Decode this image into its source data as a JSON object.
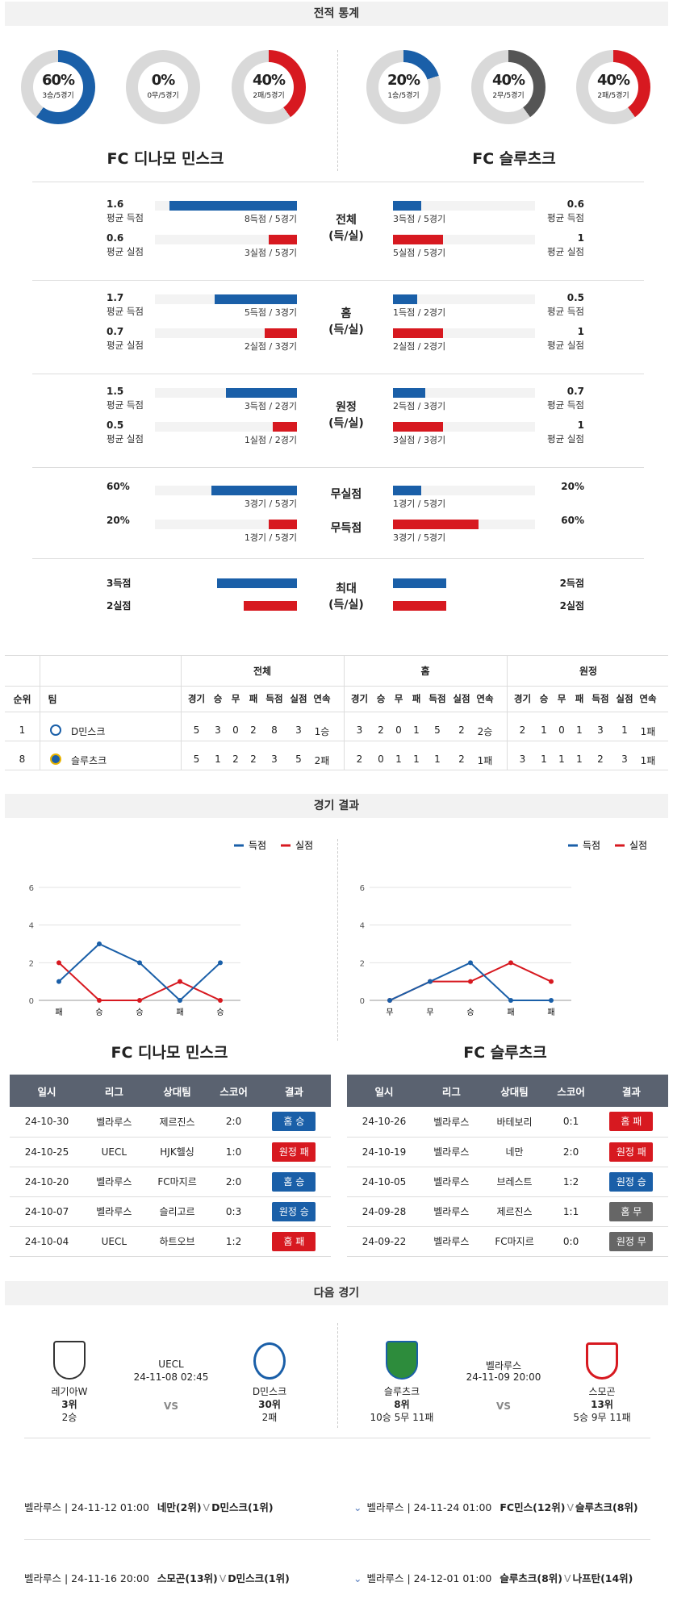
{
  "sections": {
    "stats": "전적 통계",
    "results": "경기 결과",
    "next": "다음 경기"
  },
  "donuts": [
    {
      "pct": "60%",
      "sub": "3승/5경기",
      "frac": 0.6,
      "color": "#1a5fa8"
    },
    {
      "pct": "0%",
      "sub": "0무/5경기",
      "frac": 0,
      "color": "#555555"
    },
    {
      "pct": "40%",
      "sub": "2패/5경기",
      "frac": 0.4,
      "color": "#d71920"
    },
    {
      "pct": "20%",
      "sub": "1승/5경기",
      "frac": 0.2,
      "color": "#1a5fa8"
    },
    {
      "pct": "40%",
      "sub": "2무/5경기",
      "frac": 0.4,
      "color": "#555555"
    },
    {
      "pct": "40%",
      "sub": "2패/5경기",
      "frac": 0.4,
      "color": "#d71920"
    }
  ],
  "teams": {
    "home": "FC 디나모 민스크",
    "away": "FC 슬루츠크"
  },
  "labels": {
    "avg_goal": "평균 득점",
    "avg_conc": "평균 실점"
  },
  "groups": [
    {
      "mid": "전체\n(득/실)",
      "l1": {
        "v": "1.6",
        "cap": "8득점 / 5경기",
        "frac": 0.9
      },
      "l2": {
        "v": "0.6",
        "cap": "3실점 / 5경기",
        "frac": 0.2
      },
      "r1": {
        "v": "0.6",
        "cap": "3득점 / 5경기",
        "frac": 0.2
      },
      "r2": {
        "v": "1",
        "cap": "5실점 / 5경기",
        "frac": 0.35
      }
    },
    {
      "mid": "홈\n(득/실)",
      "l1": {
        "v": "1.7",
        "cap": "5득점 / 3경기",
        "frac": 0.58
      },
      "l2": {
        "v": "0.7",
        "cap": "2실점 / 3경기",
        "frac": 0.23
      },
      "r1": {
        "v": "0.5",
        "cap": "1득점 / 2경기",
        "frac": 0.17
      },
      "r2": {
        "v": "1",
        "cap": "2실점 / 2경기",
        "frac": 0.35
      }
    },
    {
      "mid": "원정\n(득/실)",
      "l1": {
        "v": "1.5",
        "cap": "3득점 / 2경기",
        "frac": 0.5
      },
      "l2": {
        "v": "0.5",
        "cap": "1실점 / 2경기",
        "frac": 0.17
      },
      "r1": {
        "v": "0.7",
        "cap": "2득점 / 3경기",
        "frac": 0.23
      },
      "r2": {
        "v": "1",
        "cap": "3실점 / 3경기",
        "frac": 0.35
      }
    }
  ],
  "cleans": {
    "row1": {
      "mid": "무실점",
      "lv": "60%",
      "lcap": "3경기 / 5경기",
      "lfrac": 0.6,
      "rv": "20%",
      "rcap": "1경기 / 5경기",
      "rfrac": 0.2
    },
    "row2": {
      "mid": "무득점",
      "lv": "20%",
      "lcap": "1경기 / 5경기",
      "lfrac": 0.2,
      "rv": "60%",
      "rcap": "3경기 / 5경기",
      "rfrac": 0.6
    }
  },
  "max": {
    "mid": "최대\n(득/실)",
    "l1": "3득점",
    "l2": "2실점",
    "r1": "2득점",
    "r2": "2실점",
    "l1f": 0.75,
    "l2f": 0.5,
    "r1f": 0.5,
    "r2f": 0.5
  },
  "table": {
    "groups": [
      "전체",
      "홈",
      "원정"
    ],
    "h_rank": "순위",
    "h_team": "팀",
    "cols": [
      "경기",
      "승",
      "무",
      "패",
      "득점",
      "실점",
      "연속"
    ],
    "rows": [
      {
        "rank": "1",
        "team": "D민스크",
        "all": [
          "5",
          "3",
          "0",
          "2",
          "8",
          "3",
          "1승"
        ],
        "home": [
          "3",
          "2",
          "0",
          "1",
          "5",
          "2",
          "2승"
        ],
        "away": [
          "2",
          "1",
          "0",
          "1",
          "3",
          "1",
          "1패"
        ]
      },
      {
        "rank": "8",
        "team": "슬루츠크",
        "all": [
          "5",
          "1",
          "2",
          "2",
          "3",
          "5",
          "2패"
        ],
        "home": [
          "2",
          "0",
          "1",
          "1",
          "1",
          "2",
          "1패"
        ],
        "away": [
          "3",
          "1",
          "1",
          "1",
          "2",
          "3",
          "1패"
        ]
      }
    ]
  },
  "charts": {
    "legend": {
      "goal": "득점",
      "conc": "실점"
    },
    "left": {
      "x": [
        "패",
        "승",
        "승",
        "패",
        "승"
      ],
      "goal": [
        1,
        3,
        2,
        0,
        2
      ],
      "conc": [
        2,
        0,
        0,
        1,
        0
      ]
    },
    "right": {
      "x": [
        "무",
        "무",
        "승",
        "패",
        "패"
      ],
      "goal": [
        0,
        1,
        2,
        0,
        0
      ],
      "conc": [
        0,
        1,
        1,
        2,
        1
      ]
    },
    "yticks": [
      "0",
      "2",
      "4",
      "6"
    ],
    "titles": {
      "left": "FC 디나모 민스크",
      "right": "FC 슬루츠크"
    }
  },
  "chart_data": [
    {
      "type": "line",
      "categories": [
        "패",
        "승",
        "승",
        "패",
        "승"
      ],
      "series": [
        {
          "name": "득점",
          "values": [
            1,
            3,
            2,
            0,
            2
          ]
        },
        {
          "name": "실점",
          "values": [
            2,
            0,
            0,
            1,
            0
          ]
        }
      ],
      "ylim": [
        0,
        6
      ],
      "title": "FC 디나모 민스크"
    },
    {
      "type": "line",
      "categories": [
        "무",
        "무",
        "승",
        "패",
        "패"
      ],
      "series": [
        {
          "name": "득점",
          "values": [
            0,
            1,
            2,
            0,
            0
          ]
        },
        {
          "name": "실점",
          "values": [
            0,
            1,
            1,
            2,
            1
          ]
        }
      ],
      "ylim": [
        0,
        6
      ],
      "title": "FC 슬루츠크"
    }
  ],
  "results": {
    "headers": [
      "일시",
      "리그",
      "상대팀",
      "스코어",
      "결과"
    ],
    "left": [
      [
        "24-10-30",
        "벨라루스",
        "제르진스",
        "2:0",
        "홈 승",
        "b-blue"
      ],
      [
        "24-10-25",
        "UECL",
        "HJK헬싱",
        "1:0",
        "원정 패",
        "b-red"
      ],
      [
        "24-10-20",
        "벨라루스",
        "FC마지르",
        "2:0",
        "홈 승",
        "b-blue"
      ],
      [
        "24-10-07",
        "벨라루스",
        "슬리고르",
        "0:3",
        "원정 승",
        "b-blue"
      ],
      [
        "24-10-04",
        "UECL",
        "하트오브",
        "1:2",
        "홈 패",
        "b-red"
      ]
    ],
    "right": [
      [
        "24-10-26",
        "벨라루스",
        "바테보리",
        "0:1",
        "홈 패",
        "b-red"
      ],
      [
        "24-10-19",
        "벨라루스",
        "네만",
        "2:0",
        "원정 패",
        "b-red"
      ],
      [
        "24-10-05",
        "벨라루스",
        "브레스트",
        "1:2",
        "원정 승",
        "b-blue"
      ],
      [
        "24-09-28",
        "벨라루스",
        "제르진스",
        "1:1",
        "홈 무",
        "b-grey"
      ],
      [
        "24-09-22",
        "벨라루스",
        "FC마지르",
        "0:0",
        "원정 무",
        "b-grey"
      ]
    ]
  },
  "next": {
    "m1": {
      "home": "레기아W",
      "hrank": "3위",
      "hrec": "2승",
      "league": "UECL",
      "time": "24-11-08 02:45",
      "vs": "VS",
      "away": "D민스크",
      "arank": "30위",
      "arec": "2패"
    },
    "m2": {
      "home": "슬루츠크",
      "hrank": "8위",
      "hrec": "10승 5무 11패",
      "league": "벨라루스",
      "time": "24-11-09 20:00",
      "vs": "VS",
      "away": "스모곤",
      "arank": "13위",
      "arec": "5승 9무 11패"
    }
  },
  "upcoming": {
    "l1": {
      "pre": "벨라루스 | 24-11-12 01:00",
      "t1": "네만(2위)",
      "v": "V",
      "t2": "D민스크(1위)"
    },
    "r1": {
      "pre": "벨라루스 | 24-11-24 01:00",
      "t1": "FC민스(12위)",
      "v": "V",
      "t2": "슬루츠크(8위)"
    },
    "l2": {
      "pre": "벨라루스 | 24-11-16 20:00",
      "t1": "스모곤(13위)",
      "v": "V",
      "t2": "D민스크(1위)"
    },
    "r2": {
      "pre": "벨라루스 | 24-12-01 01:00",
      "t1": "슬루츠크(8위)",
      "v": "V",
      "t2": "나프탄(14위)"
    }
  }
}
